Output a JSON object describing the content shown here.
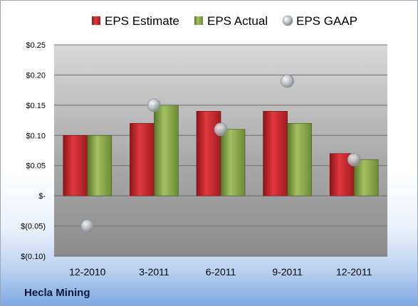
{
  "company": "Hecla Mining",
  "colors": {
    "estimate": "#c0262b",
    "actual": "#7e9d3a",
    "gaap": "#b9bec6"
  },
  "chart_data": {
    "type": "bar",
    "categories": [
      "12-2010",
      "3-2011",
      "6-2011",
      "9-2011",
      "12-2011"
    ],
    "series": [
      {
        "name": "EPS Estimate",
        "kind": "bar",
        "values": [
          0.1,
          0.12,
          0.14,
          0.14,
          0.07
        ]
      },
      {
        "name": "EPS Actual",
        "kind": "bar",
        "values": [
          0.1,
          0.15,
          0.11,
          0.12,
          0.06
        ]
      },
      {
        "name": "EPS GAAP",
        "kind": "scatter",
        "values": [
          -0.05,
          0.15,
          0.11,
          0.19,
          0.06
        ]
      }
    ],
    "ylim": [
      -0.1,
      0.25
    ],
    "yticks": [
      0.25,
      0.2,
      0.15,
      0.1,
      0.05,
      0,
      -0.05,
      -0.1
    ],
    "ytick_labels": [
      "$0.25",
      "$0.20",
      "$0.15",
      "$0.10",
      "$0.05",
      "$-",
      "$(0.05)",
      "$(0.10)"
    ],
    "legend_position": "top",
    "grid": true
  }
}
